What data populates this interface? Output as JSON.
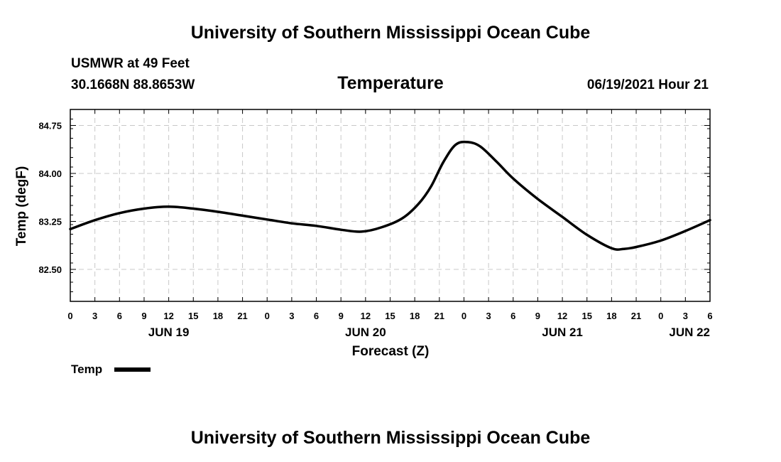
{
  "header": {
    "title": "University of Southern Mississippi Ocean Cube",
    "station": "USMWR at 49 Feet",
    "coords": "30.1668N  88.8653W",
    "datetime": "06/19/2021 Hour 21"
  },
  "footer": {
    "title": "University of Southern Mississippi Ocean Cube"
  },
  "legend": {
    "label": "Temp",
    "color": "#000000"
  },
  "chart_data": {
    "type": "line",
    "title": "Temperature",
    "xlabel": "Forecast (Z)",
    "ylabel": "Temp (degF)",
    "ylim": [
      82.0,
      85.0
    ],
    "yticks": [
      82.5,
      83.25,
      84.0,
      84.75
    ],
    "ytick_labels": [
      "82.50",
      "83.25",
      "84.00",
      "84.75"
    ],
    "xlim": [
      0,
      78
    ],
    "xticks": [
      0,
      3,
      6,
      9,
      12,
      15,
      18,
      21,
      24,
      27,
      30,
      33,
      36,
      39,
      42,
      45,
      48,
      51,
      54,
      57,
      60,
      63,
      66,
      69,
      72,
      75,
      78
    ],
    "xtick_labels": [
      "0",
      "3",
      "6",
      "9",
      "12",
      "15",
      "18",
      "21",
      "0",
      "3",
      "6",
      "9",
      "12",
      "15",
      "18",
      "21",
      "0",
      "3",
      "6",
      "9",
      "12",
      "15",
      "18",
      "21",
      "0",
      "3",
      "6"
    ],
    "date_labels": [
      {
        "hour": 12,
        "label": "JUN 19"
      },
      {
        "hour": 36,
        "label": "JUN 20"
      },
      {
        "hour": 60,
        "label": "JUN 21"
      },
      {
        "hour": 78,
        "label": "JUN 22"
      }
    ],
    "series": [
      {
        "name": "Temp",
        "x": [
          0,
          3,
          6,
          9,
          12,
          15,
          18,
          21,
          24,
          27,
          30,
          33,
          35.5,
          38,
          40.5,
          42.5,
          44,
          45.5,
          47,
          48.5,
          50,
          52,
          54,
          57,
          60,
          63,
          66,
          67.5,
          69,
          72,
          75,
          78
        ],
        "values": [
          83.13,
          83.27,
          83.38,
          83.45,
          83.48,
          83.45,
          83.4,
          83.34,
          83.28,
          83.22,
          83.18,
          83.12,
          83.09,
          83.16,
          83.3,
          83.53,
          83.8,
          84.18,
          84.45,
          84.49,
          84.42,
          84.18,
          83.92,
          83.6,
          83.32,
          83.04,
          82.83,
          82.82,
          82.85,
          82.95,
          83.1,
          83.27
        ]
      }
    ]
  }
}
